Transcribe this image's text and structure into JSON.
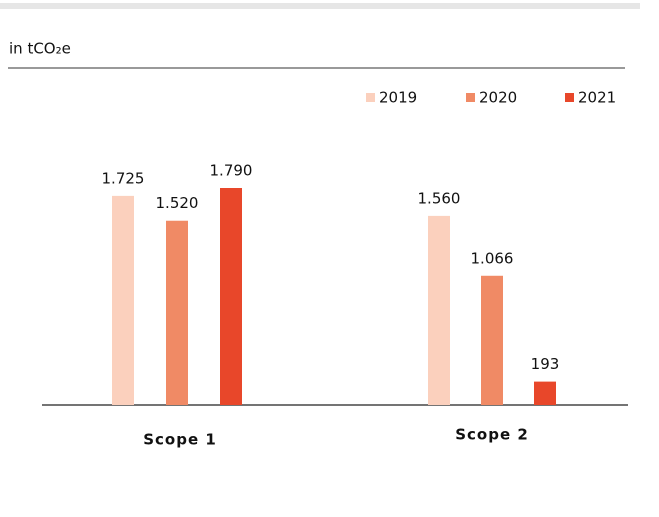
{
  "chart_data": {
    "type": "bar",
    "unit_label": "in tCO₂e",
    "categories": [
      "Scope 1",
      "Scope 2"
    ],
    "series": [
      {
        "name": "2019",
        "color": "#fbd0bd",
        "values": [
          1725,
          1560
        ],
        "value_labels": [
          "1.725",
          "1.560"
        ]
      },
      {
        "name": "2020",
        "color": "#f08a65",
        "values": [
          1520,
          1066
        ],
        "value_labels": [
          "1.520",
          "1.066"
        ]
      },
      {
        "name": "2021",
        "color": "#e8472a",
        "values": [
          1790,
          193
        ],
        "value_labels": [
          "1.790",
          "193"
        ]
      }
    ],
    "legend": "top-right"
  }
}
